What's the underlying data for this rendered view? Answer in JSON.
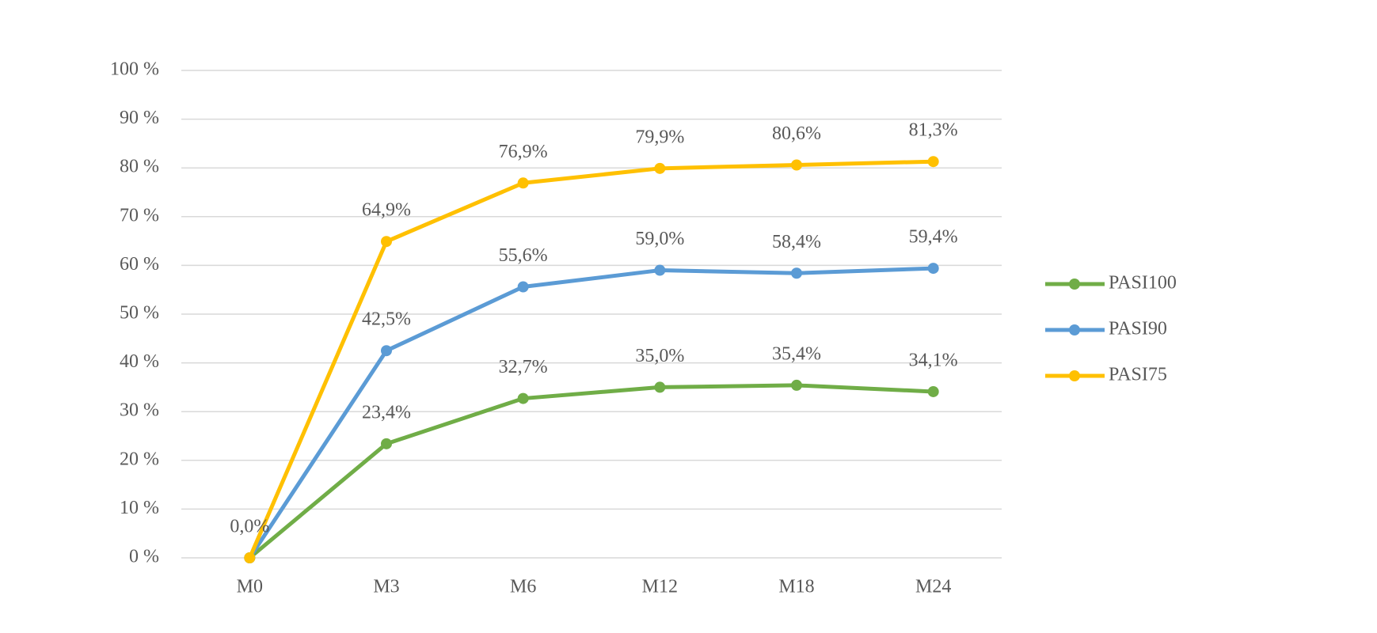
{
  "chart_data": {
    "type": "line",
    "categories": [
      "M0",
      "M3",
      "M6",
      "M12",
      "M18",
      "M24"
    ],
    "series": [
      {
        "name": "PASI100",
        "color": "#70ad47",
        "values": [
          0,
          23.4,
          32.7,
          35.0,
          35.4,
          34.1
        ],
        "value_labels": [
          null,
          "23,4%",
          "32,7%",
          "35,0%",
          "35,4%",
          "34,1%"
        ]
      },
      {
        "name": "PASI90",
        "color": "#5b9bd5",
        "values": [
          0,
          42.5,
          55.6,
          59.0,
          58.4,
          59.4
        ],
        "value_labels": [
          null,
          "42,5%",
          "55,6%",
          "59,0%",
          "58,4%",
          "59,4%"
        ]
      },
      {
        "name": "PASI75",
        "color": "#ffc000",
        "values": [
          0,
          64.9,
          76.9,
          79.9,
          80.6,
          81.3
        ],
        "value_labels": [
          "0,0%",
          "64,9%",
          "76,9%",
          "79,9%",
          "80,6%",
          "81,3%"
        ]
      }
    ],
    "ylim": [
      0,
      100
    ],
    "yticks": [
      {
        "value": 0,
        "label": "0 %"
      },
      {
        "value": 10,
        "label": "10 %"
      },
      {
        "value": 20,
        "label": "20 %"
      },
      {
        "value": 30,
        "label": "30 %"
      },
      {
        "value": 40,
        "label": "40 %"
      },
      {
        "value": 50,
        "label": "50 %"
      },
      {
        "value": 60,
        "label": "60 %"
      },
      {
        "value": 70,
        "label": "70 %"
      },
      {
        "value": 80,
        "label": "80 %"
      },
      {
        "value": 90,
        "label": "90 %"
      },
      {
        "value": 100,
        "label": "100 %"
      }
    ],
    "grid": true,
    "legend": "right"
  }
}
